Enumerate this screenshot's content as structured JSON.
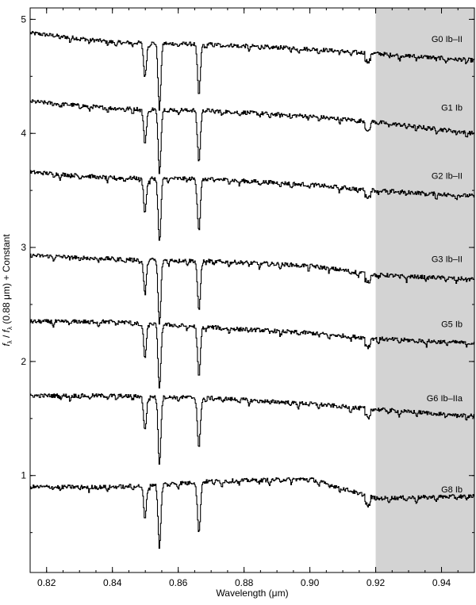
{
  "chart_data": {
    "type": "line",
    "title": "",
    "xlabel": "Wavelength (μm)",
    "ylabel_parts": {
      "f": "f",
      "sub1": "λ",
      "slash": " / ",
      "sub2": "λ",
      "rest": " (0.88 μm) + Constant"
    },
    "xlim": [
      0.815,
      0.95
    ],
    "ylim": [
      0.15,
      5.1
    ],
    "xticks": [
      0.82,
      0.84,
      0.86,
      0.88,
      0.9,
      0.92,
      0.94
    ],
    "xtick_labels": [
      "0.82",
      "0.84",
      "0.86",
      "0.88",
      "0.90",
      "0.92",
      "0.94"
    ],
    "yticks": [
      1,
      2,
      3,
      4,
      5
    ],
    "ytick_labels": [
      "1",
      "2",
      "3",
      "4",
      "5"
    ],
    "shaded_region": {
      "x": [
        0.92,
        0.95
      ],
      "color": "#d3d3d3"
    },
    "grid": false,
    "line_color": "#000000",
    "absorption_lines_um": [
      0.8498,
      0.8542,
      0.8662
    ],
    "series": [
      {
        "name": "G0 Ib–II",
        "offset": 4.85,
        "x": [
          0.815,
          0.84,
          0.87,
          0.9,
          0.92,
          0.95
        ],
        "y": [
          4.88,
          4.8,
          4.78,
          4.74,
          4.7,
          4.64
        ]
      },
      {
        "name": "G1 Ib",
        "offset": 4.25,
        "x": [
          0.815,
          0.84,
          0.87,
          0.9,
          0.92,
          0.95
        ],
        "y": [
          4.28,
          4.22,
          4.2,
          4.15,
          4.1,
          4.0
        ]
      },
      {
        "name": "G2 Ib–II",
        "offset": 3.65,
        "x": [
          0.815,
          0.84,
          0.87,
          0.9,
          0.92,
          0.95
        ],
        "y": [
          3.66,
          3.61,
          3.6,
          3.55,
          3.5,
          3.45
        ]
      },
      {
        "name": "G3 Ib–II",
        "offset": 2.92,
        "x": [
          0.815,
          0.84,
          0.87,
          0.9,
          0.92,
          0.95
        ],
        "y": [
          2.93,
          2.9,
          2.88,
          2.84,
          2.76,
          2.72
        ]
      },
      {
        "name": "G5 Ib",
        "offset": 2.35,
        "x": [
          0.815,
          0.84,
          0.87,
          0.9,
          0.92,
          0.95
        ],
        "y": [
          2.35,
          2.35,
          2.3,
          2.25,
          2.2,
          2.16
        ]
      },
      {
        "name": "G6 Ib–IIa",
        "offset": 1.7,
        "x": [
          0.815,
          0.84,
          0.87,
          0.9,
          0.92,
          0.95
        ],
        "y": [
          1.7,
          1.7,
          1.68,
          1.63,
          1.58,
          1.52
        ]
      },
      {
        "name": "G8 Ib",
        "offset": 0.9,
        "x": [
          0.815,
          0.84,
          0.87,
          0.9,
          0.92,
          0.95
        ],
        "y": [
          0.9,
          0.9,
          0.95,
          0.97,
          0.8,
          0.82
        ]
      }
    ]
  }
}
